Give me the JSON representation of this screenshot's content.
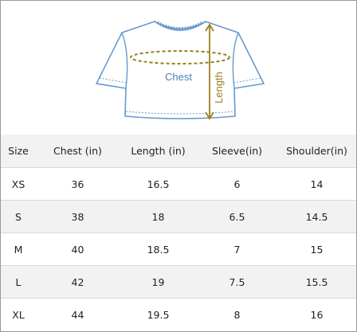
{
  "diagram": {
    "chest_label": "Chest",
    "length_label": "Length",
    "colors": {
      "shirt_outline": "#6699cc",
      "chest_text": "#4f7fb8",
      "measure_line": "#9a7f1a",
      "length_text": "#9a7f1a"
    }
  },
  "table": {
    "headers": [
      "Size",
      "Chest (in)",
      "Length (in)",
      "Sleeve(in)",
      "Shoulder(in)"
    ],
    "rows": [
      [
        "XS",
        "36",
        "16.5",
        "6",
        "14"
      ],
      [
        "S",
        "38",
        "18",
        "6.5",
        "14.5"
      ],
      [
        "M",
        "40",
        "18.5",
        "7",
        "15"
      ],
      [
        "L",
        "42",
        "19",
        "7.5",
        "15.5"
      ],
      [
        "XL",
        "44",
        "19.5",
        "8",
        "16"
      ]
    ],
    "colors": {
      "header_bg": "#f2f2f2",
      "stripe_bg": "#f2f2f2",
      "divider": "#d9d9d9"
    }
  }
}
